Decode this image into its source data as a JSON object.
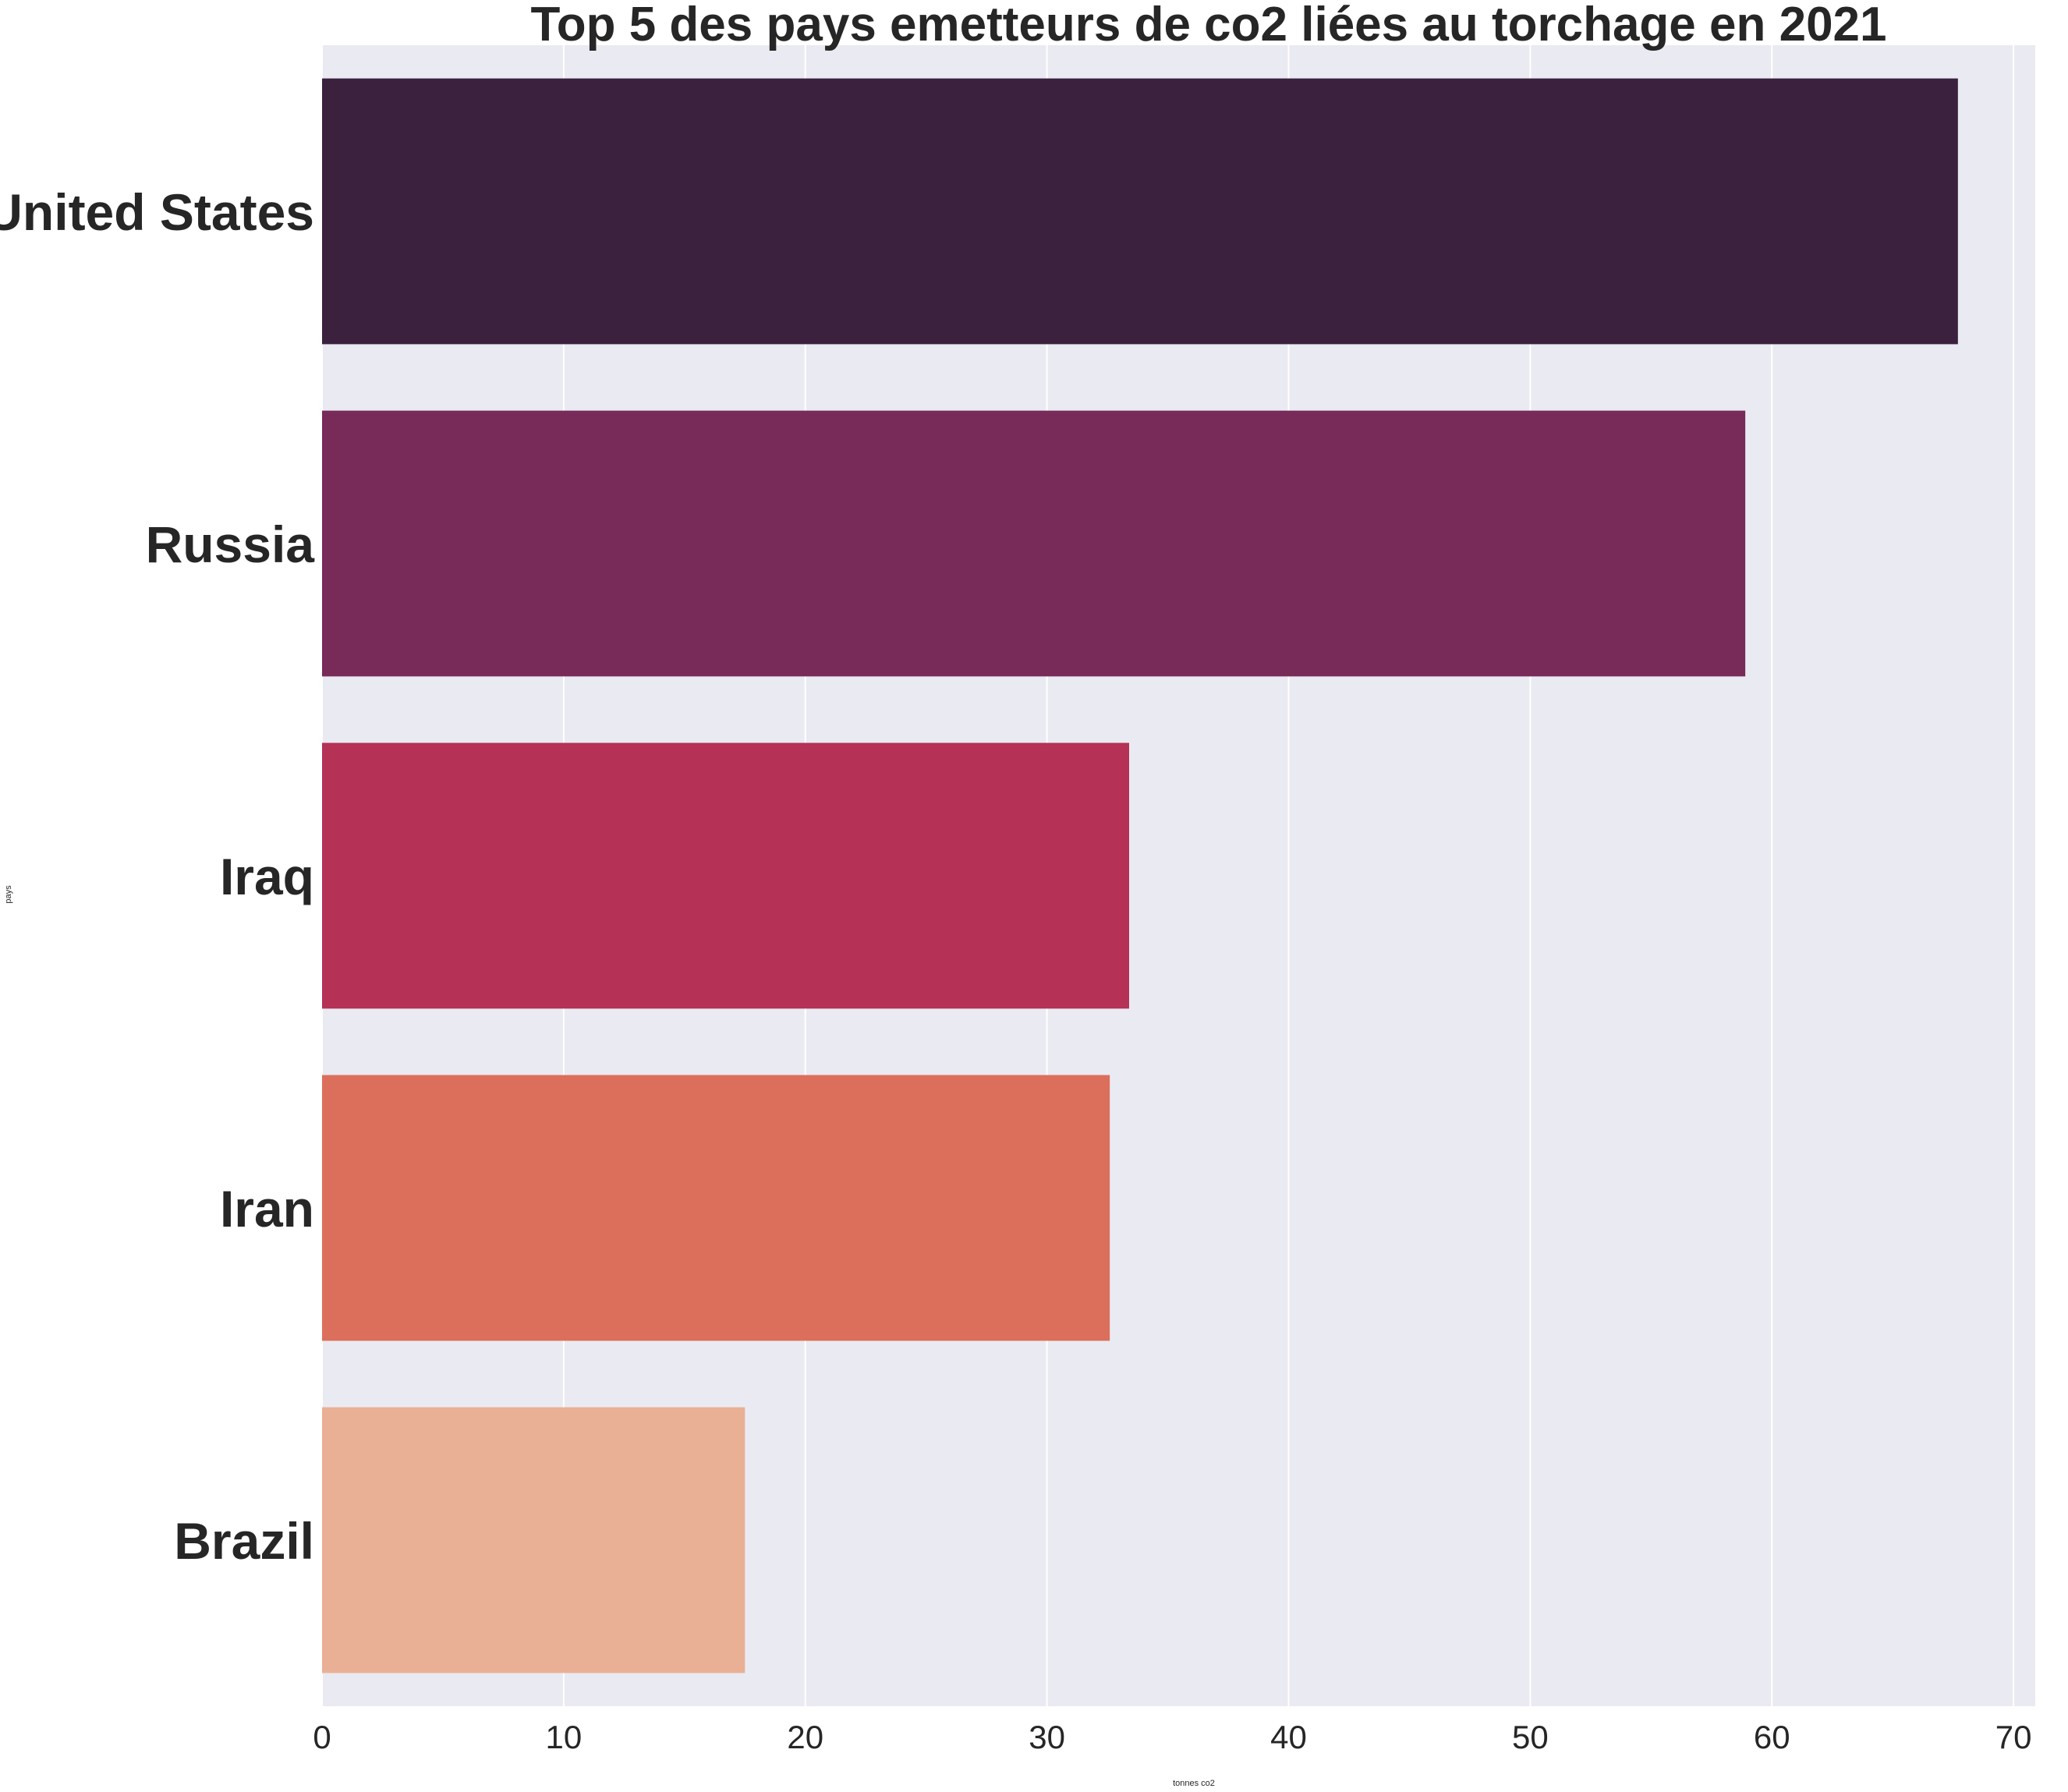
{
  "chart_data": {
    "type": "bar",
    "orientation": "horizontal",
    "title": "Top 5 des pays emetteurs de co2 liées au torchage en 2021",
    "xlabel": "tonnes co2",
    "ylabel": "pays",
    "categories": [
      "United States",
      "Russia",
      "Iraq",
      "Iran",
      "Brazil"
    ],
    "values": [
      67.7,
      58.9,
      33.4,
      32.6,
      17.5
    ],
    "colors": [
      "#3b213e",
      "#782a59",
      "#b53156",
      "#dc6f5b",
      "#e9b095"
    ],
    "xlim": [
      0,
      70.9
    ],
    "xticks": [
      0,
      10,
      20,
      30,
      40,
      50,
      60,
      70
    ],
    "grid": true,
    "background": "#eaeaf2",
    "grid_color": "#ffffff"
  }
}
